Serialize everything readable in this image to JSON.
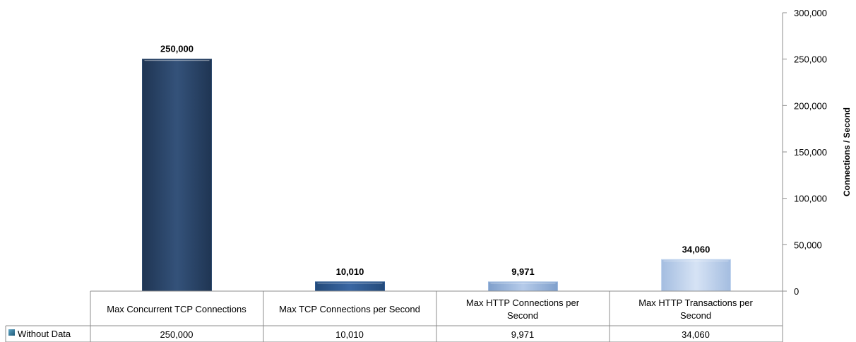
{
  "chart_data": {
    "type": "bar",
    "categories": [
      "Max Concurrent TCP Connections",
      "Max TCP Connections per Second",
      "Max HTTP Connections per Second",
      "Max HTTP Transactions per Second"
    ],
    "series": [
      {
        "name": "Without Data",
        "values": [
          250000,
          10010,
          9971,
          34060
        ]
      }
    ],
    "data_labels": [
      "250,000",
      "10,010",
      "9,971",
      "34,060"
    ],
    "table_values": [
      "250,000",
      "10,010",
      "9,971",
      "34,060"
    ],
    "ylabel": "Connections / Second",
    "ylim": [
      0,
      300000
    ],
    "yticks": [
      0,
      50000,
      100000,
      150000,
      200000,
      250000,
      300000
    ],
    "ytick_labels": [
      "0",
      "50,000",
      "100,000",
      "150,000",
      "200,000",
      "250,000",
      "300,000"
    ],
    "y_axis_side": "right",
    "grid": false,
    "legend_placement": "data-table",
    "bar_colors": [
      "#2d4a6e",
      "#2f5b93",
      "#9eb9df",
      "#c3d6ef"
    ],
    "legend_key_color": "#2f6f8f"
  }
}
